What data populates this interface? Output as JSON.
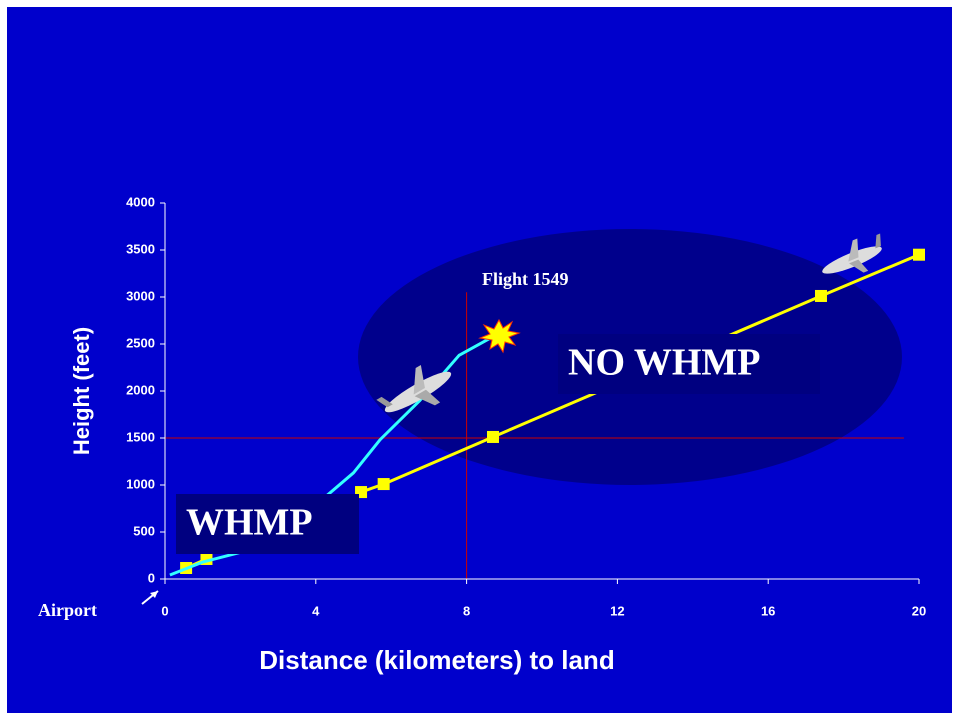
{
  "chart_data": {
    "type": "line",
    "xlabel": "Distance (kilometers) to land",
    "ylabel": "Height (feet)",
    "xlim": [
      0,
      20
    ],
    "xticks": [
      0,
      4,
      8,
      12,
      16,
      20
    ],
    "ylim": [
      0,
      4000
    ],
    "yticks": [
      0,
      500,
      1000,
      1500,
      2000,
      2500,
      3000,
      3500,
      4000
    ],
    "series": [
      {
        "color": "#ffff00",
        "marker": "square",
        "x": [
          0.56,
          1.1
        ],
        "values": [
          117,
          213
        ]
      },
      {
        "color": "#ffff00",
        "marker": "square",
        "x": [
          5.2,
          5.8,
          8.7,
          17.4,
          20
        ],
        "values": [
          925,
          1010,
          1511,
          3011,
          3450
        ]
      },
      {
        "color": "#33ffff",
        "marker": "none",
        "x": [
          0.13,
          1,
          2.25,
          3,
          4,
          5,
          5.7,
          6.76,
          7.8,
          8.8
        ],
        "values": [
          43,
          180,
          310,
          530,
          787,
          1130,
          1480,
          1900,
          2380,
          2600
        ]
      }
    ],
    "vlines": [
      {
        "x": 8,
        "ymax": 3050,
        "color": "#cc0000"
      }
    ],
    "hlines": [
      {
        "y": 1500,
        "xmax": 19.6,
        "color": "#cc0000"
      }
    ],
    "annotations": {
      "flight": "Flight 1549",
      "whmp": "WHMP",
      "no_whmp": "NO WHMP",
      "airport": "Airport"
    }
  }
}
